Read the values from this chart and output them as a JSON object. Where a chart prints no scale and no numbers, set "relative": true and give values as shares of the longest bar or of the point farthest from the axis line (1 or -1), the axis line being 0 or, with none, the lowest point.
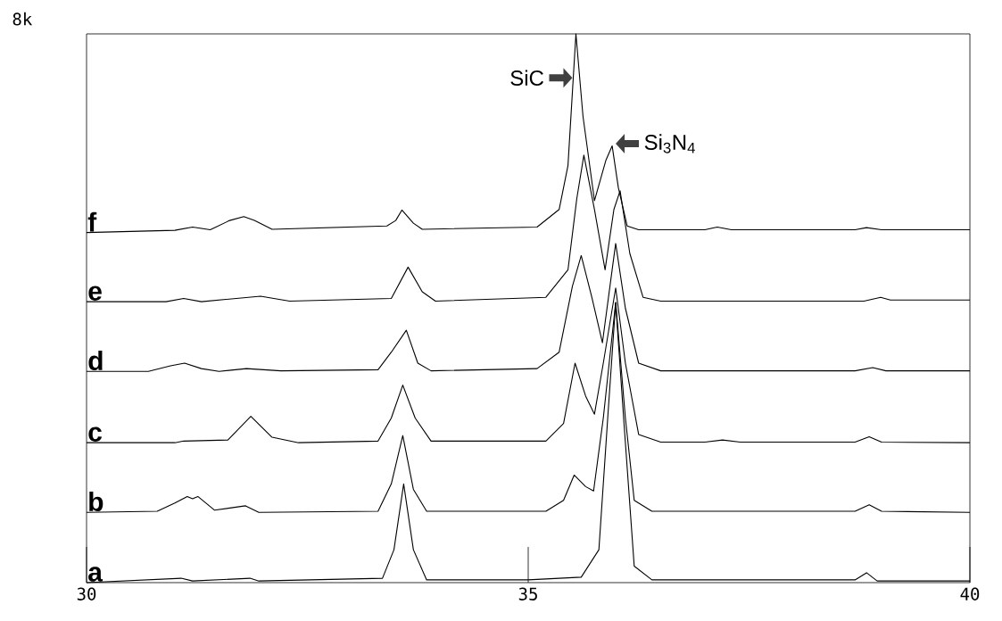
{
  "chart_data": {
    "type": "line",
    "relative": true,
    "xlim": [
      30,
      40
    ],
    "xticks": [
      30,
      35,
      40
    ],
    "line_style": "solid",
    "marker": "none",
    "annotations": [
      "8k",
      {
        "text": "SiC",
        "x": 35.54,
        "y": 0.92
      },
      {
        "text": "Si$_{3}$N$_{4}$",
        "x": 35.95,
        "y": 0.8
      }
    ],
    "series": [
      {
        "name": "a",
        "color": "#000000",
        "x": [
          30.0,
          31.07,
          31.2,
          31.85,
          31.95,
          33.35,
          33.48,
          33.59,
          33.7,
          33.85,
          35.0,
          35.6,
          35.8,
          35.9,
          35.99,
          36.08,
          36.2,
          36.4,
          38.7,
          38.83,
          38.95,
          40.0
        ],
        "values": [
          0.0,
          0.008,
          0.003,
          0.008,
          0.003,
          0.008,
          0.06,
          0.18,
          0.06,
          0.005,
          0.005,
          0.01,
          0.06,
          0.3,
          0.51,
          0.3,
          0.03,
          0.005,
          0.005,
          0.018,
          0.003,
          0.003
        ]
      },
      {
        "name": "b",
        "color": "#000000",
        "x": [
          30.0,
          30.8,
          31.0,
          31.14,
          31.2,
          31.26,
          31.45,
          31.8,
          31.95,
          33.3,
          33.45,
          33.58,
          33.7,
          33.85,
          35.2,
          35.4,
          35.52,
          35.65,
          35.74,
          35.85,
          35.99,
          36.1,
          36.2,
          36.4,
          38.7,
          38.86,
          39.0,
          40.0
        ],
        "values": [
          0.128,
          0.13,
          0.145,
          0.157,
          0.153,
          0.157,
          0.132,
          0.14,
          0.128,
          0.13,
          0.18,
          0.268,
          0.17,
          0.13,
          0.13,
          0.15,
          0.196,
          0.175,
          0.167,
          0.3,
          0.511,
          0.3,
          0.15,
          0.13,
          0.13,
          0.142,
          0.13,
          0.128
        ]
      },
      {
        "name": "c",
        "color": "#000000",
        "x": [
          30.0,
          31.0,
          31.1,
          31.6,
          31.86,
          32.1,
          32.4,
          33.3,
          33.45,
          33.58,
          33.72,
          33.9,
          35.2,
          35.4,
          35.53,
          35.65,
          35.75,
          35.85,
          35.99,
          36.1,
          36.25,
          36.5,
          37.0,
          37.2,
          37.4,
          38.7,
          38.86,
          39.0,
          40.0
        ],
        "values": [
          0.255,
          0.255,
          0.258,
          0.26,
          0.303,
          0.265,
          0.255,
          0.258,
          0.3,
          0.36,
          0.3,
          0.258,
          0.258,
          0.29,
          0.4,
          0.34,
          0.307,
          0.4,
          0.537,
          0.4,
          0.27,
          0.256,
          0.256,
          0.26,
          0.256,
          0.256,
          0.266,
          0.256,
          0.255
        ]
      },
      {
        "name": "d",
        "color": "#000000",
        "x": [
          30.0,
          30.7,
          30.95,
          31.11,
          31.3,
          31.5,
          31.81,
          32.2,
          33.3,
          33.45,
          33.62,
          33.75,
          33.9,
          35.1,
          35.35,
          35.5,
          35.6,
          35.72,
          35.84,
          35.95,
          35.99,
          36.1,
          36.25,
          36.5,
          38.7,
          38.9,
          39.05,
          40.0
        ],
        "values": [
          0.385,
          0.385,
          0.395,
          0.4,
          0.39,
          0.385,
          0.39,
          0.386,
          0.388,
          0.42,
          0.46,
          0.4,
          0.386,
          0.39,
          0.42,
          0.54,
          0.596,
          0.52,
          0.437,
          0.57,
          0.618,
          0.5,
          0.4,
          0.386,
          0.386,
          0.392,
          0.386,
          0.386
        ]
      },
      {
        "name": "e",
        "color": "#000000",
        "x": [
          30.0,
          30.9,
          31.1,
          31.3,
          31.97,
          32.3,
          33.45,
          33.64,
          33.8,
          33.95,
          35.2,
          35.45,
          35.55,
          35.63,
          35.75,
          35.87,
          35.97,
          36.04,
          36.15,
          36.3,
          36.5,
          38.8,
          38.99,
          39.1,
          40.0
        ],
        "values": [
          0.512,
          0.512,
          0.518,
          0.512,
          0.522,
          0.513,
          0.518,
          0.575,
          0.53,
          0.513,
          0.52,
          0.57,
          0.7,
          0.779,
          0.68,
          0.57,
          0.68,
          0.714,
          0.6,
          0.52,
          0.513,
          0.513,
          0.52,
          0.515,
          0.515
        ]
      },
      {
        "name": "f",
        "color": "#000000",
        "x": [
          30.0,
          31.0,
          31.2,
          31.4,
          31.62,
          31.78,
          31.9,
          32.1,
          33.4,
          33.5,
          33.57,
          33.7,
          33.8,
          35.1,
          35.35,
          35.45,
          35.54,
          35.62,
          35.75,
          35.88,
          35.95,
          36.02,
          36.12,
          36.25,
          37.0,
          37.14,
          37.3,
          38.7,
          38.83,
          39.0,
          40.0
        ],
        "values": [
          0.638,
          0.642,
          0.648,
          0.643,
          0.66,
          0.667,
          0.66,
          0.644,
          0.65,
          0.66,
          0.679,
          0.655,
          0.644,
          0.648,
          0.68,
          0.76,
          1.0,
          0.85,
          0.696,
          0.77,
          0.796,
          0.72,
          0.65,
          0.643,
          0.643,
          0.648,
          0.643,
          0.643,
          0.647,
          0.643,
          0.643
        ]
      }
    ]
  }
}
